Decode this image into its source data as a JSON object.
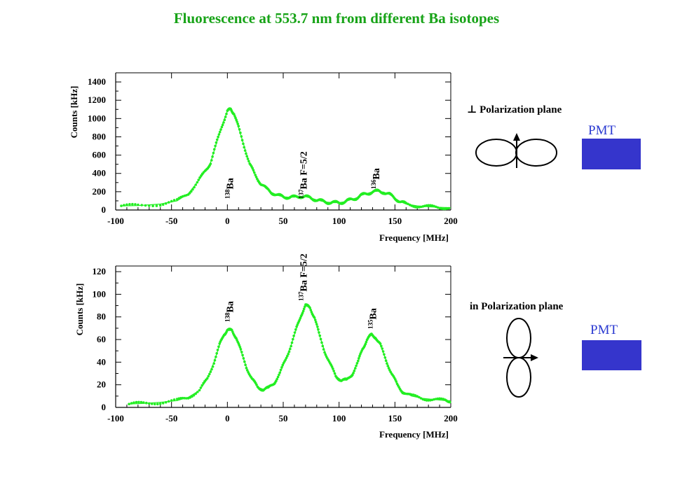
{
  "title": "Fluorescence at 553.7 nm from different Ba isotopes",
  "colors": {
    "title": "#17a317",
    "data": "#22ee22",
    "pmt": "#3535cc"
  },
  "chart_data": [
    {
      "type": "scatter",
      "ylabel": "Counts [kHz]",
      "xlabel": "Frequency [MHz]",
      "xlim": [
        -100,
        200
      ],
      "ylim": [
        0,
        1500
      ],
      "xticks": [
        -100,
        -50,
        0,
        50,
        100,
        150,
        200
      ],
      "xtick_labels": [
        "-100",
        "-50",
        "0",
        "50",
        "100",
        "150",
        "200"
      ],
      "yticks": [
        0,
        200,
        400,
        600,
        800,
        1000,
        1200,
        1400
      ],
      "ytick_labels": [
        "0",
        "200",
        "400",
        "600",
        "800",
        "1000",
        "1200",
        "1400"
      ],
      "annotations": [
        {
          "sup": "138",
          "text": "Ba",
          "x": 2
        },
        {
          "sup": "137",
          "text": "Ba F=5/2",
          "x": 68
        },
        {
          "sup": "136",
          "text": "Ba",
          "x": 133
        }
      ],
      "series": [
        {
          "style": "points+fit",
          "points": [
            [
              -95,
              45
            ],
            [
              -80,
              48
            ],
            [
              -60,
              65
            ],
            [
              -45,
              100
            ],
            [
              -35,
              180
            ],
            [
              -27,
              300
            ],
            [
              -20,
              420
            ],
            [
              -15,
              520
            ],
            [
              -10,
              720
            ],
            [
              -5,
              920
            ],
            [
              0,
              1080
            ],
            [
              3,
              1100
            ],
            [
              6,
              1060
            ],
            [
              10,
              900
            ],
            [
              15,
              700
            ],
            [
              20,
              500
            ],
            [
              25,
              380
            ],
            [
              30,
              290
            ],
            [
              35,
              230
            ],
            [
              40,
              190
            ],
            [
              45,
              160
            ],
            [
              50,
              145
            ],
            [
              55,
              140
            ],
            [
              60,
              140
            ],
            [
              65,
              150
            ],
            [
              70,
              145
            ],
            [
              75,
              130
            ],
            [
              80,
              110
            ],
            [
              85,
              95
            ],
            [
              90,
              85
            ],
            [
              95,
              80
            ],
            [
              100,
              80
            ],
            [
              105,
              90
            ],
            [
              110,
              110
            ],
            [
              115,
              130
            ],
            [
              120,
              160
            ],
            [
              125,
              180
            ],
            [
              130,
              200
            ],
            [
              135,
              205
            ],
            [
              140,
              195
            ],
            [
              145,
              170
            ],
            [
              150,
              130
            ],
            [
              155,
              90
            ],
            [
              160,
              65
            ],
            [
              170,
              45
            ],
            [
              180,
              35
            ],
            [
              190,
              30
            ],
            [
              200,
              25
            ]
          ]
        }
      ]
    },
    {
      "type": "scatter",
      "ylabel": "Counts [kHz]",
      "xlabel": "Frequency [MHz]",
      "xlim": [
        -100,
        200
      ],
      "ylim": [
        0,
        125
      ],
      "xticks": [
        -100,
        -50,
        0,
        50,
        100,
        150,
        200
      ],
      "xtick_labels": [
        "-100",
        "-50",
        "0",
        "50",
        "100",
        "150",
        "200"
      ],
      "yticks": [
        0,
        20,
        40,
        60,
        80,
        100,
        120
      ],
      "ytick_labels": [
        "0",
        "20",
        "40",
        "60",
        "80",
        "100",
        "120"
      ],
      "annotations": [
        {
          "sup": "138",
          "text": "Ba",
          "x": 2
        },
        {
          "sup": "137",
          "text": "Ba F=5/2",
          "x": 68
        },
        {
          "sup": "135",
          "text": "Ba",
          "x": 130
        }
      ],
      "series": [
        {
          "style": "points+fit",
          "points": [
            [
              -88,
              3
            ],
            [
              -75,
              3.5
            ],
            [
              -60,
              4.5
            ],
            [
              -45,
              6
            ],
            [
              -35,
              9
            ],
            [
              -25,
              15
            ],
            [
              -18,
              25
            ],
            [
              -12,
              40
            ],
            [
              -7,
              55
            ],
            [
              -3,
              65
            ],
            [
              0,
              68
            ],
            [
              4,
              68
            ],
            [
              8,
              62
            ],
            [
              12,
              50
            ],
            [
              17,
              36
            ],
            [
              22,
              25
            ],
            [
              27,
              18
            ],
            [
              32,
              16
            ],
            [
              37,
              17
            ],
            [
              42,
              22
            ],
            [
              47,
              30
            ],
            [
              52,
              42
            ],
            [
              57,
              55
            ],
            [
              62,
              70
            ],
            [
              66,
              82
            ],
            [
              70,
              90
            ],
            [
              74,
              88
            ],
            [
              78,
              80
            ],
            [
              82,
              65
            ],
            [
              87,
              50
            ],
            [
              92,
              38
            ],
            [
              97,
              28
            ],
            [
              102,
              24
            ],
            [
              107,
              24
            ],
            [
              112,
              30
            ],
            [
              117,
              40
            ],
            [
              121,
              52
            ],
            [
              125,
              60
            ],
            [
              129,
              64
            ],
            [
              133,
              62
            ],
            [
              137,
              55
            ],
            [
              142,
              42
            ],
            [
              147,
              30
            ],
            [
              152,
              20
            ],
            [
              157,
              14
            ],
            [
              165,
              10
            ],
            [
              175,
              8
            ],
            [
              185,
              7
            ],
            [
              195,
              6
            ],
            [
              200,
              6
            ]
          ]
        }
      ]
    }
  ],
  "diagram": {
    "top": {
      "label": "⊥ Polarization plane",
      "pmt": "PMT"
    },
    "bottom": {
      "label": "in Polarization plane",
      "pmt": "PMT"
    }
  }
}
